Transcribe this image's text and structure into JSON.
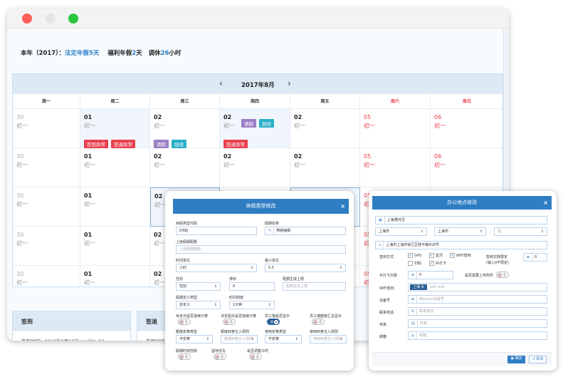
{
  "window": {
    "controls": [
      "close",
      "minimize",
      "maximize"
    ],
    "colors": {
      "close": "#fe5f57",
      "minimize": "#e4e4e4",
      "maximize": "#28c840"
    }
  },
  "summary": {
    "prefix": "本年（2017）：",
    "legal_label": "法定年假",
    "legal_value": "5",
    "legal_unit": "天",
    "welfare_label": "福利年假",
    "welfare_value": "2",
    "welfare_unit": "天",
    "comp_label": "调休",
    "comp_value": "26",
    "comp_unit": "小时"
  },
  "calendar": {
    "month": "2017年8月",
    "prev_icon": "chevron-left-icon",
    "next_icon": "chevron-right-icon",
    "weekdays": [
      "周一",
      "周二",
      "周三",
      "周四",
      "周五",
      "周六",
      "周日"
    ],
    "weekend_color": "#e8414f",
    "rows": [
      [
        {
          "day": "30",
          "lunar": "初一",
          "muted": true
        },
        {
          "day": "01",
          "lunar": "初一",
          "tint": true,
          "tags_bottom": [
            {
              "text": "签到异常",
              "color": "#e8414f"
            },
            {
              "text": "签退异常",
              "color": "#e8414f"
            }
          ]
        },
        {
          "day": "02",
          "lunar": "初一",
          "tags_bottom": [
            {
              "text": "请假",
              "color": "#9b7fc4"
            },
            {
              "text": "加班",
              "color": "#2bb0c8"
            }
          ]
        },
        {
          "day": "02",
          "lunar": "初一",
          "tint": true,
          "tags_top": [
            {
              "text": "请假",
              "color": "#9b7fc4"
            },
            {
              "text": "加班",
              "color": "#2bb0c8"
            }
          ],
          "tags_bottom": [
            {
              "text": "签退异常",
              "color": "#e8414f"
            }
          ]
        },
        {
          "day": "02",
          "lunar": "初一"
        },
        {
          "day": "05",
          "lunar": "初一",
          "weekend": true
        },
        {
          "day": "06",
          "lunar": "初一",
          "weekend": true
        }
      ],
      [
        {
          "day": "30",
          "lunar": "初一",
          "muted": true
        },
        {
          "day": "01",
          "lunar": "初一"
        },
        {
          "day": "02",
          "lunar": "初一"
        },
        {
          "day": "02",
          "lunar": "初一"
        },
        {
          "day": "02",
          "lunar": "初一"
        },
        {
          "day": "05",
          "lunar": "初一",
          "weekend": true
        },
        {
          "day": "06",
          "lunar": "初一",
          "weekend": true
        }
      ],
      [
        {
          "day": "30",
          "lunar": "初一",
          "muted": true
        },
        {
          "day": "01",
          "lunar": "初一"
        },
        {
          "day": "02",
          "lunar": "初一",
          "selected": true
        },
        {
          "day": "02",
          "lunar": "初一"
        },
        {
          "day": "02",
          "lunar": "初一",
          "selected": true
        },
        {
          "day": "05",
          "lunar": "初一",
          "weekend": true
        },
        {
          "day": "06",
          "lunar": "初一",
          "weekend": true
        }
      ],
      [
        {
          "day": "30",
          "lunar": "初一",
          "muted": true
        },
        {
          "day": "01",
          "lunar": "初一"
        },
        {
          "day": "02",
          "lunar": "初一"
        },
        {
          "day": "02",
          "lunar": "初一"
        },
        {
          "day": "02",
          "lunar": "初一"
        },
        {
          "day": "05",
          "lunar": "初一",
          "weekend": true
        },
        {
          "day": "06",
          "lunar": "初一",
          "weekend": true
        }
      ],
      [
        {
          "day": "30",
          "lunar": "初一",
          "muted": true
        },
        {
          "day": "01",
          "lunar": "初一"
        },
        {
          "day": "02",
          "lunar": "初一"
        },
        {
          "day": "02",
          "lunar": "初一"
        },
        {
          "day": "02",
          "lunar": "初一"
        },
        {
          "day": "05",
          "lunar": "初一",
          "weekend": true
        },
        {
          "day": "06",
          "lunar": "初一",
          "weekend": true
        }
      ]
    ]
  },
  "signin": {
    "title": "签到",
    "text": "签到时间：2017年8月10日  am10：02"
  },
  "signout": {
    "title": "签退",
    "text": "签到时间："
  },
  "leave_modal": {
    "title": "休假类型修改",
    "close": "×",
    "type_code_label": "休假类型代码",
    "type_code_value": "DXBJ",
    "name_label": "假期名称",
    "name_value": "带薪病假",
    "parent_label": "上级假期配额",
    "parent_placeholder": "上级假期配额",
    "time_unit_label": "时间单位",
    "time_unit_value": "小时",
    "min_unit_label": "最小单位",
    "min_unit_value": "0.5",
    "gender_label": "性别",
    "gender_value": "性别",
    "order_label": "排序",
    "order_value": "0",
    "quota_limit_label": "配额生成上限",
    "quota_limit_placeholder": "配额生成上限",
    "def_type_label": "假期定义类型",
    "def_type_value": "自定义",
    "scale_label": "时间刻度",
    "scale_value": "1分钟",
    "toggles1": [
      {
        "label": "休息日是否连续计算",
        "state": "否",
        "on": false
      },
      {
        "label": "法定假日是否连续计算",
        "state": "否",
        "on": false
      },
      {
        "label": "员工端是否显示",
        "state": "是",
        "on": true
      },
      {
        "label": "员工端额度汇总显示",
        "state": "否",
        "on": false
      }
    ],
    "convert": [
      {
        "label": "额度折算类型",
        "value": "不折算",
        "placeholder": false
      },
      {
        "label": "额度四舍五入规则",
        "value": "额度四舍五入规则",
        "placeholder": true
      },
      {
        "label": "使用折算类型",
        "value": "不折算",
        "placeholder": false
      },
      {
        "label": "使用四舍五入规则",
        "value": "使用四舍五入规则",
        "placeholder": true
      }
    ],
    "toggles2": [
      {
        "label": "假期时效控制",
        "state": "否",
        "on": false
      },
      {
        "label": "留存优先",
        "state": "否",
        "on": false
      },
      {
        "label": "是否调整工时",
        "state": "否",
        "on": false
      }
    ]
  },
  "office_modal": {
    "title": "办公地点修改",
    "close": "×",
    "name_value": "上海漕河泾",
    "province": "上海市",
    "city": "上海市",
    "county": "县",
    "address": "上海市上海市徐汇区桂平路418号",
    "checkin_label": "签到方式",
    "methods": [
      {
        "label": "GPS",
        "checked": true
      },
      {
        "label": "蓝牙",
        "checked": true
      },
      {
        "label": "WIFI签到",
        "checked": true
      },
      {
        "label": "扫码",
        "checked": false
      },
      {
        "label": "补打卡",
        "checked": true
      }
    ],
    "limit_label": "签到次数限定",
    "limit_hint": "(输入0不限定)",
    "limit_value": "0",
    "makeup_label": "补打卡次数",
    "makeup_value": "0",
    "attach_label": "是否需要上传附件",
    "attach_state": "否",
    "wifi_label": "WIFI签到",
    "wifi_tag": "上海",
    "wifi_placeholder": "wifi ssid",
    "device_label": "设备号",
    "device_placeholder": "iBeacon设备号",
    "phone_label": "联系电话",
    "phone_placeholder": "联系电话",
    "fax_label": "传真",
    "fax_placeholder": "传真",
    "email_label": "邮箱",
    "email_placeholder": "邮箱",
    "confirm": "确定",
    "cancel": "取消",
    "accent": "#2f7ec4"
  }
}
